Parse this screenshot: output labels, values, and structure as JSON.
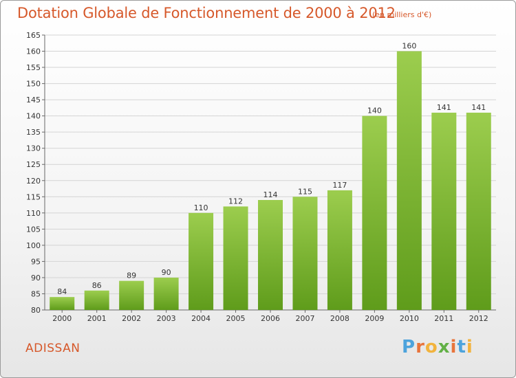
{
  "header": {
    "title": "Dotation Globale de Fonctionnement de 2000 à 2012",
    "unit": "(en milliers d'€)"
  },
  "footer": {
    "commune": "ADISSAN",
    "logo_letters": [
      "P",
      "r",
      "o",
      "x",
      "i",
      "t",
      "i"
    ],
    "logo_colors": [
      "#4da3dc",
      "#e8743b",
      "#f2b33d",
      "#62b046",
      "#e8743b",
      "#4da3dc",
      "#f2b33d"
    ]
  },
  "chart_data": {
    "type": "bar",
    "title": "Dotation Globale de Fonctionnement de 2000 à 2012",
    "subtitle": "(en milliers d'€)",
    "categories": [
      "2000",
      "2001",
      "2002",
      "2003",
      "2004",
      "2005",
      "2006",
      "2007",
      "2008",
      "2009",
      "2010",
      "2011",
      "2012"
    ],
    "values": [
      84,
      86,
      89,
      90,
      110,
      112,
      114,
      115,
      117,
      140,
      160,
      141,
      141
    ],
    "data_labels": [
      "84",
      "86",
      "89",
      "90",
      "110",
      "112",
      "114",
      "115",
      "117",
      "140",
      "160",
      "141",
      "141"
    ],
    "yticks": [
      "80",
      "85",
      "90",
      "95",
      "100",
      "105",
      "110",
      "115",
      "120",
      "125",
      "130",
      "135",
      "140",
      "145",
      "150",
      "155",
      "160",
      "165"
    ],
    "xlabel": "",
    "ylabel": "",
    "ylim": [
      80,
      165
    ],
    "grid": true,
    "colors": {
      "bar_top": "#9ccd4e",
      "bar_bottom": "#5f9c1b",
      "grid": "#d4d4d4",
      "axis_text": "#333333"
    }
  }
}
